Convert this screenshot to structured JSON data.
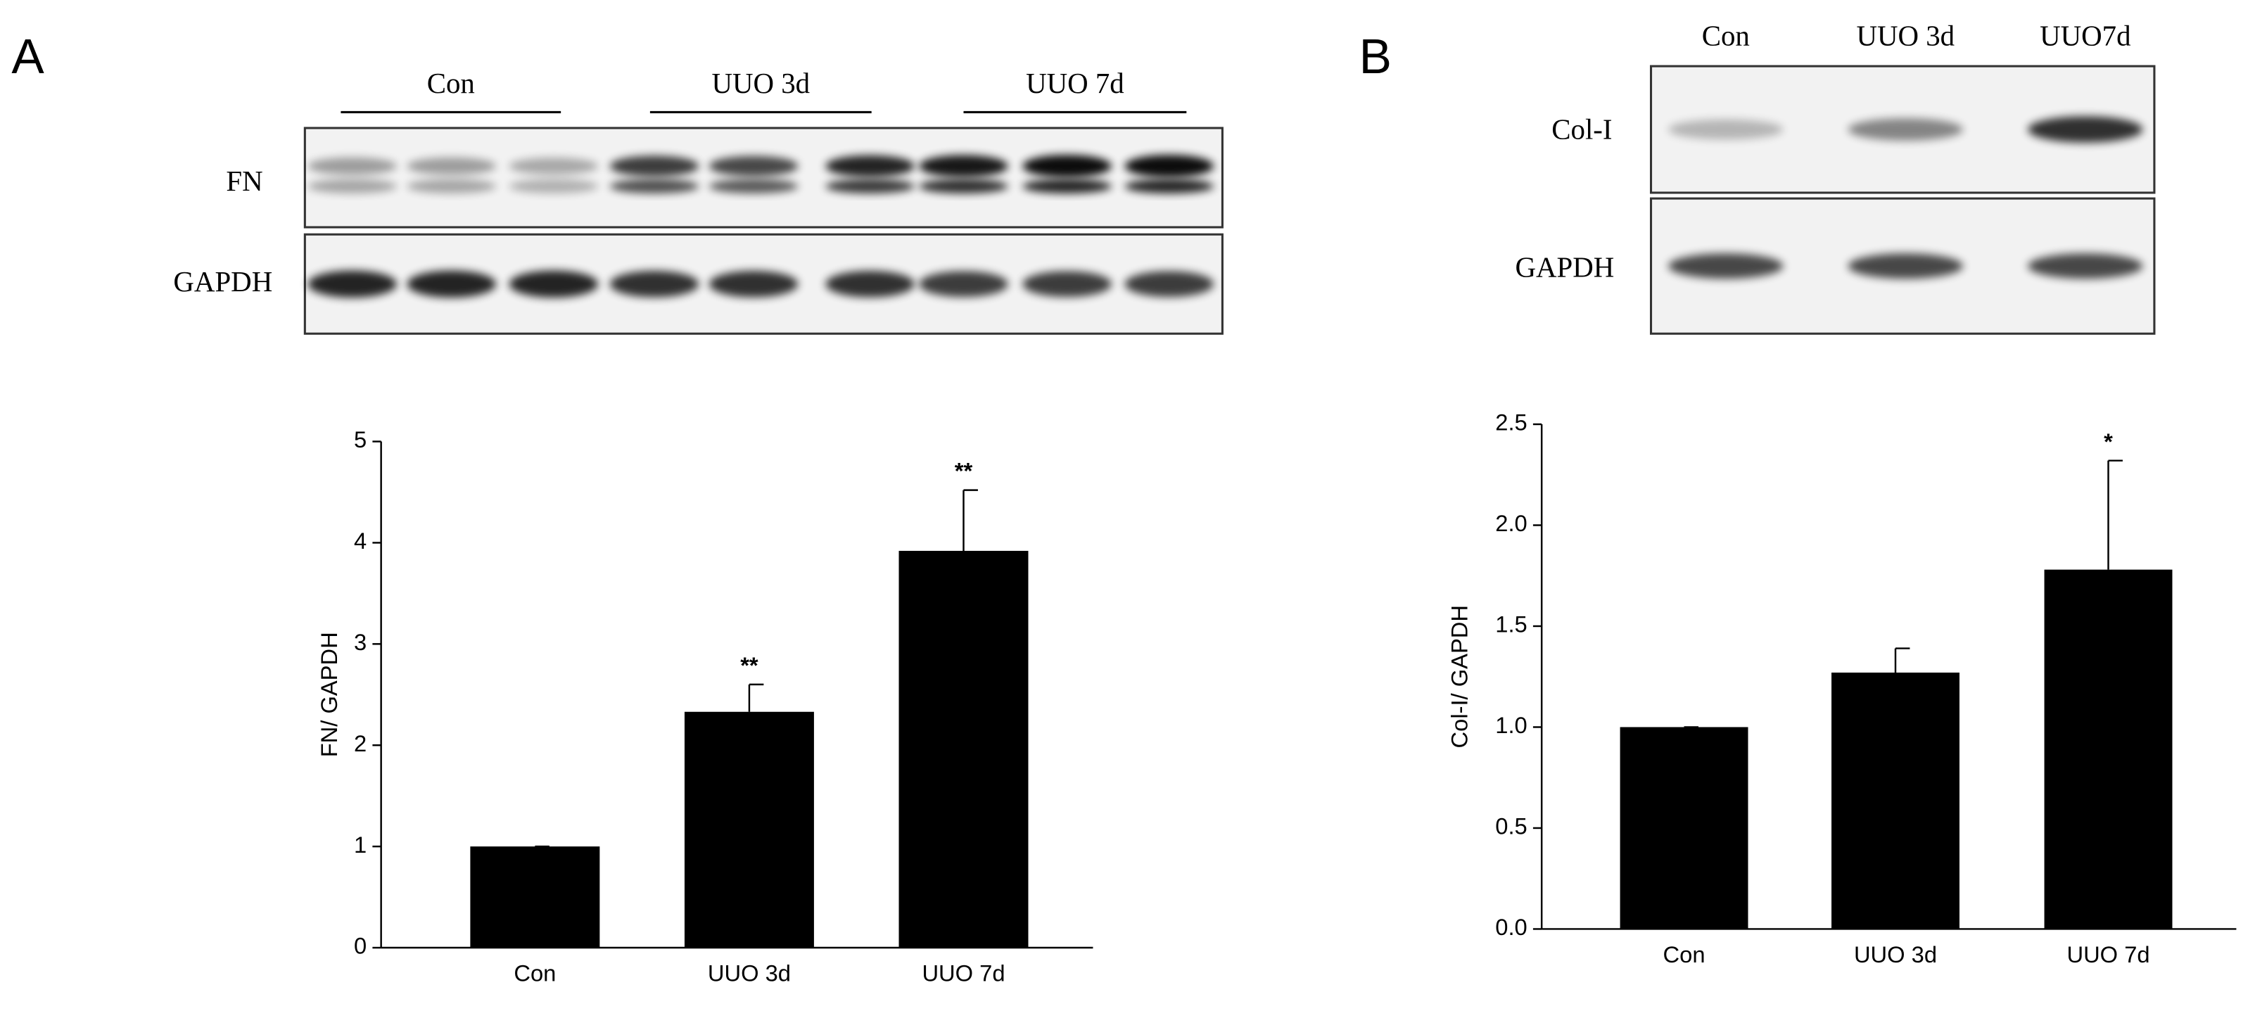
{
  "blots": [
    {
      "label": "A",
      "groups": [
        "Con",
        "UUO 3d",
        "UUO 7d"
      ],
      "rows": [
        "FN",
        "GAPDH"
      ]
    },
    {
      "label": "B",
      "groups": [
        "Con",
        "UUO 3d",
        "UUO7d"
      ],
      "rows": [
        "Col-I",
        "GAPDH"
      ]
    }
  ],
  "chart_data": [
    {
      "type": "bar",
      "ylabel": "FN/ GAPDH",
      "categories": [
        "Con",
        "UUO 3d",
        "UUO 7d"
      ],
      "values": [
        1.0,
        2.33,
        3.92
      ],
      "errors": [
        0,
        0.27,
        0.6
      ],
      "value_annotations": [
        null,
        "**",
        "**"
      ],
      "color": "#000000",
      "ylim": [
        0,
        5
      ],
      "yticks": [
        0,
        1,
        2,
        3,
        4,
        5
      ]
    },
    {
      "type": "bar",
      "ylabel": "Col-I/ GAPDH",
      "categories": [
        "Con",
        "UUO 3d",
        "UUO 7d"
      ],
      "values": [
        1.0,
        1.27,
        1.78
      ],
      "errors": [
        0,
        0.12,
        0.54
      ],
      "value_annotations": [
        null,
        null,
        "*"
      ],
      "color": "#000000",
      "ylim": [
        0,
        2.5
      ],
      "yticks": [
        {
          "value": 0,
          "label": "0.0"
        },
        0.5,
        {
          "value": 1,
          "label": "1.0"
        },
        1.5,
        {
          "value": 2,
          "label": "2.0"
        },
        2.5
      ]
    }
  ]
}
